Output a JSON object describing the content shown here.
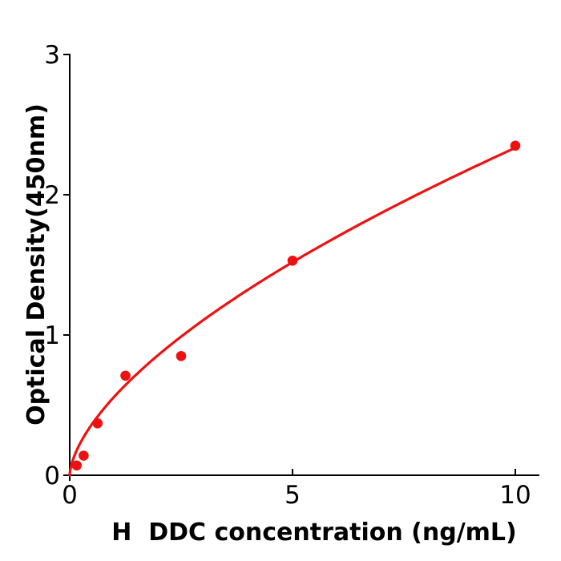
{
  "figure": {
    "background": "#ffffff"
  },
  "chart_data": {
    "type": "scatter",
    "title": "",
    "xlabel": "H  DDC concentration (ng/mL)",
    "ylabel": "Optical Density(450nm)",
    "x": [
      0.156,
      0.3125,
      0.625,
      1.25,
      2.5,
      5,
      10
    ],
    "y": [
      0.07,
      0.14,
      0.37,
      0.71,
      0.85,
      1.53,
      2.35
    ],
    "xlim": [
      0,
      10.55
    ],
    "ylim": [
      0,
      3.05
    ],
    "xticks": [
      0,
      5,
      10
    ],
    "xtick_labels": [
      "0",
      "5",
      "10"
    ],
    "yticks": [
      0,
      1,
      2,
      3
    ],
    "ytick_labels": [
      "0",
      "1",
      "2",
      "3"
    ],
    "grid": false,
    "legend": null,
    "marker": "circle",
    "marker_radius": 6.3,
    "fit_curve": {
      "model": "power",
      "equation": "y = 0.56 * x^0.62",
      "a": 0.56,
      "b": 0.62,
      "x_range": [
        0,
        10
      ]
    },
    "colors": {
      "points": "#ee1111",
      "curve": "#ee1111",
      "axis": "#000000",
      "text": "#000000"
    }
  }
}
